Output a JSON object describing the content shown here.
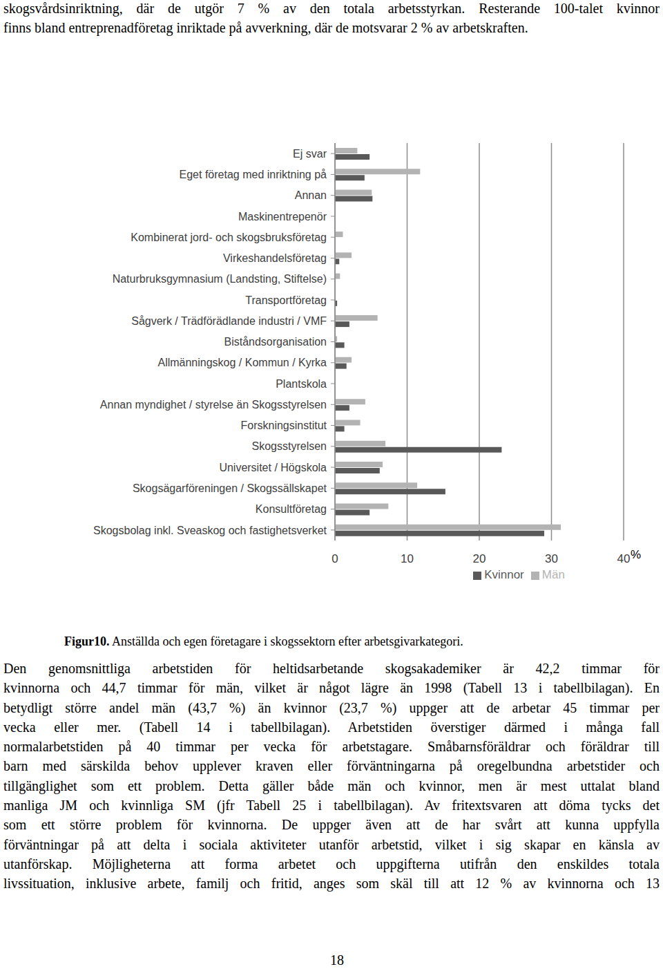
{
  "top_lines": [
    "skogsvårdsinriktning, där de utgör 7 % av den totala arbetsstyrkan. Resterande 100-talet kvinnor",
    "finns bland entreprenadföretag inriktade på avverkning, där de motsvarar 2 % av arbetskraften."
  ],
  "chart_data": {
    "type": "bar",
    "orientation": "horizontal",
    "categories": [
      "Ej svar",
      "Eget företag med inriktning på",
      "Annan",
      "Maskinentrepenör",
      "Kombinerat jord- och skogsbruksföretag",
      "Virkeshandelsföretag",
      "Naturbruksgymnasium (Landsting, Stiftelse)",
      "Transportföretag",
      "Sågverk / Trädförädlande industri / VMF",
      "Biståndsorganisation",
      "Allmänningskog / Kommun / Kyrka",
      "Plantskola",
      "Annan myndighet / styrelse än Skogsstyrelsen",
      "Forskningsinstitut",
      "Skogsstyrelsen",
      "Universitet / Högskola",
      "Skogsägarföreningen / Skogssällskapet",
      "Konsultföretag",
      "Skogsbolag inkl. Sveaskog och fastighetsverket"
    ],
    "series": [
      {
        "name": "Män",
        "color": "#b3b3b3",
        "values": [
          3.1,
          11.8,
          5.1,
          0,
          1.1,
          2.3,
          0.7,
          0,
          5.9,
          0.3,
          2.3,
          0,
          4.2,
          3.5,
          7.0,
          6.6,
          11.4,
          7.4,
          31.3
        ]
      },
      {
        "name": "Kvinnor",
        "color": "#595959",
        "values": [
          4.8,
          4.1,
          5.2,
          0,
          0,
          0.6,
          0,
          0.3,
          2.0,
          1.3,
          1.6,
          0,
          2.0,
          1.3,
          23.1,
          6.2,
          15.3,
          4.8,
          29.0
        ]
      }
    ],
    "xlabel": "%",
    "xlim": [
      0,
      40
    ],
    "xticks": [
      0,
      10,
      20,
      30,
      40
    ],
    "grid": true,
    "legend": "bottom"
  },
  "caption": {
    "label": "Figur10.",
    "text": "Anställda och egen företagare i skogssektorn efter arbetsgivarkategori."
  },
  "body_lines": [
    "Den genomsnittliga arbetstiden för heltidsarbetande skogsakademiker är 42,2 timmar för",
    "kvinnorna och 44,7 timmar för män, vilket är något lägre än 1998 (Tabell 13 i tabellbilagan). En",
    "betydligt större andel män (43,7 %) än kvinnor (23,7 %) uppger att de arbetar 45 timmar per",
    "vecka eller mer. (Tabell 14 i tabellbilagan). Arbetstiden överstiger därmed i många fall",
    "normalarbetstiden på 40 timmar per vecka för arbetstagare. Småbarnsföräldrar och föräldrar till",
    "barn med särskilda behov upplever kraven eller förväntningarna på oregelbundna arbetstider och",
    "tillgänglighet som ett problem. Detta gäller både män och kvinnor, men är mest uttalat bland",
    "manliga JM och kvinnliga SM (jfr Tabell 25 i tabellbilagan). Av fritextsvaren att döma tycks det",
    "som ett större problem för kvinnorna. De uppger även att de har svårt att kunna uppfylla",
    "förväntningar på att delta i sociala aktiviteter utanför arbetstid, vilket i sig skapar en känsla av",
    "utanförskap. Möjligheterna att forma arbetet och uppgifterna utifrån den enskildes totala",
    "livssituation, inklusive arbete, familj och fritid, anges som skäl till att 12 % av kvinnorna och 13"
  ],
  "page_number": "18"
}
